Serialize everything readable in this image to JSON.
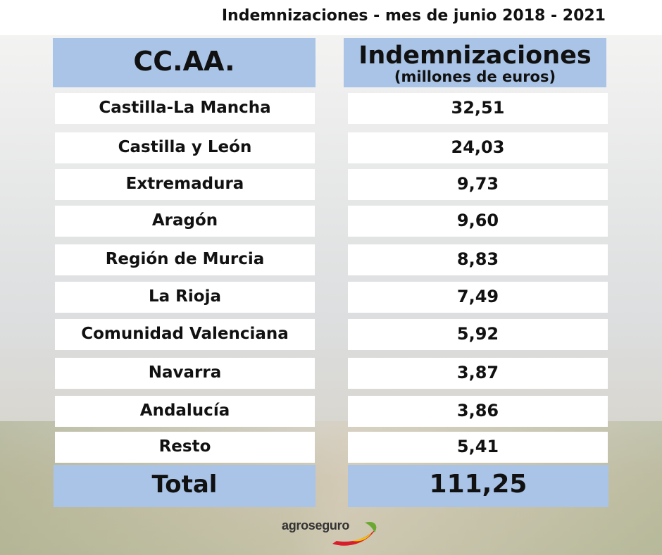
{
  "title": "Indemnizaciones - mes de junio 2018 - 2021",
  "header": {
    "left": "CC.AA.",
    "right_main": "Indemnizaciones",
    "right_sub": "(millones de euros)"
  },
  "rows": [
    {
      "region": "Castilla-La Mancha",
      "value": "32,51"
    },
    {
      "region": "Castilla y León",
      "value": "24,03"
    },
    {
      "region": "Extremadura",
      "value": "9,73"
    },
    {
      "region": "Aragón",
      "value": "9,60"
    },
    {
      "region": "Región de Murcia",
      "value": "8,83"
    },
    {
      "region": "La Rioja",
      "value": "7,49"
    },
    {
      "region": "Comunidad Valenciana",
      "value": "5,92"
    },
    {
      "region": "Navarra",
      "value": "3,87"
    },
    {
      "region": "Andalucía",
      "value": "3,86"
    },
    {
      "region": "Resto",
      "value": "5,41"
    }
  ],
  "total": {
    "label": "Total",
    "value": "111,25"
  },
  "logo": {
    "text": "agroseguro",
    "colors": {
      "red": "#d81e2a",
      "green": "#6aa832",
      "yellow": "#f2c200"
    }
  }
}
